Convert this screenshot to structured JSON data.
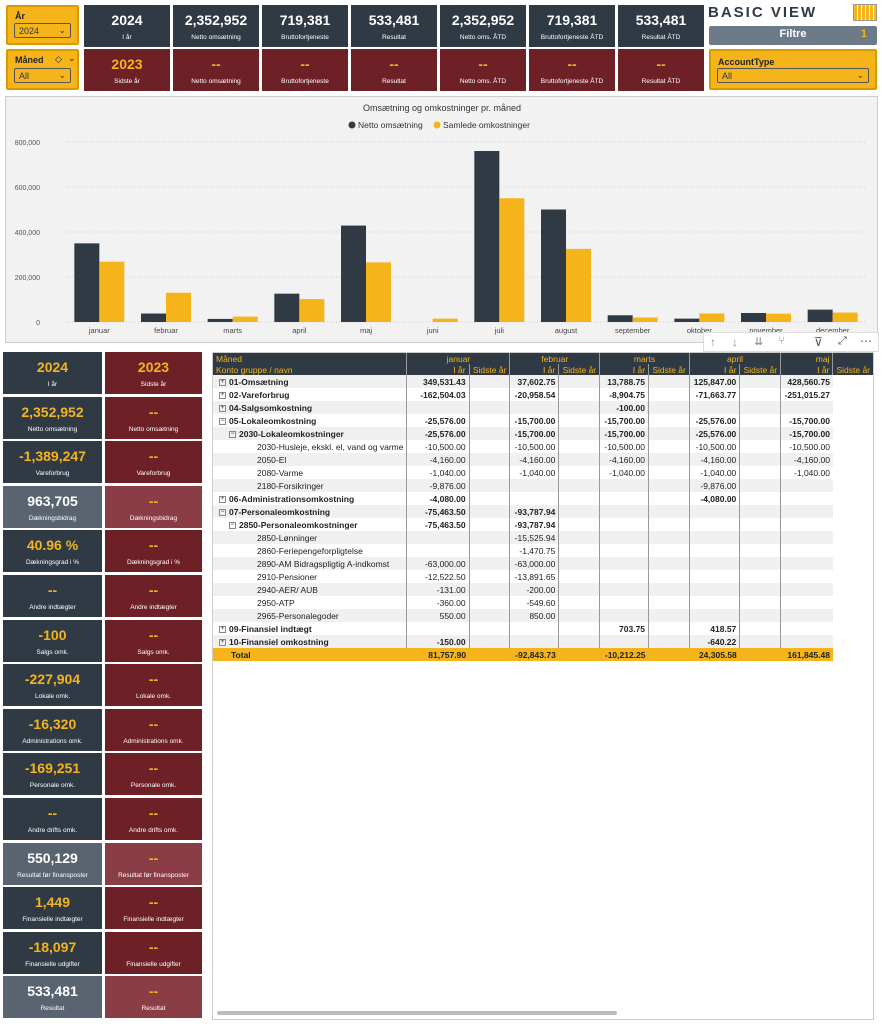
{
  "slicers": {
    "year": {
      "label": "År",
      "value": "2024"
    },
    "month": {
      "label": "Måned",
      "value": "All"
    },
    "account_type": {
      "label": "AccountType",
      "value": "All"
    }
  },
  "brand": {
    "logo": "BASIC VIEW",
    "filter_button": "Filtre",
    "filter_count": "1"
  },
  "kpi_current": [
    {
      "value": "2024",
      "caption": "I år"
    },
    {
      "value": "2,352,952",
      "caption": "Netto omsætning"
    },
    {
      "value": "719,381",
      "caption": "Bruttofortjeneste"
    },
    {
      "value": "533,481",
      "caption": "Resultat"
    },
    {
      "value": "2,352,952",
      "caption": "Netto oms. ÅTD"
    },
    {
      "value": "719,381",
      "caption": "Bruttofortjeneste ÅTD"
    },
    {
      "value": "533,481",
      "caption": "Resultat ÅTD"
    }
  ],
  "kpi_previous": [
    {
      "value": "2023",
      "caption": "Sidste år"
    },
    {
      "value": "--",
      "caption": "Netto omsætning"
    },
    {
      "value": "--",
      "caption": "Bruttofortjeneste"
    },
    {
      "value": "--",
      "caption": "Resultat"
    },
    {
      "value": "--",
      "caption": "Netto oms. ÅTD"
    },
    {
      "value": "--",
      "caption": "Bruttofortjeneste ÅTD"
    },
    {
      "value": "--",
      "caption": "Resultat ÅTD"
    }
  ],
  "chart_data": {
    "type": "bar",
    "title": "Omsætning og omkostninger pr. måned",
    "categories": [
      "januar",
      "februar",
      "marts",
      "april",
      "maj",
      "juni",
      "juli",
      "august",
      "september",
      "oktober",
      "november",
      "december"
    ],
    "series": [
      {
        "name": "Netto omsætning",
        "color": "#2f3a45",
        "values": [
          349531,
          37603,
          13789,
          125847,
          428561,
          0,
          760000,
          500000,
          30000,
          15000,
          40000,
          55000
        ]
      },
      {
        "name": "Samlede omkostninger",
        "color": "#f4b41a",
        "values": [
          268000,
          130000,
          24000,
          102000,
          265000,
          15000,
          550000,
          325000,
          20000,
          38000,
          37000,
          42000
        ]
      }
    ],
    "yticks": [
      "0",
      "200,000",
      "400,000",
      "600,000",
      "800,000"
    ],
    "ylim": [
      0,
      800000
    ],
    "legend": "top-center"
  },
  "left_cards": [
    {
      "cur": "2024",
      "cur_cap": "I år",
      "prev": "2023",
      "prev_cap": "Sidste år"
    },
    {
      "cur": "2,352,952",
      "cur_cap": "Netto omsætning",
      "prev": "--",
      "prev_cap": "Netto omsætning"
    },
    {
      "cur": "-1,389,247",
      "cur_cap": "Vareforbrug",
      "prev": "--",
      "prev_cap": "Vareforbrug"
    },
    {
      "cur": "963,705",
      "cur_cap": "Dækningsbidrag",
      "prev": "--",
      "prev_cap": "Dækningsbidrag"
    },
    {
      "cur": "40.96 %",
      "cur_cap": "Dækningsgrad i %",
      "prev": "--",
      "prev_cap": "Dækningsgrad i %"
    },
    {
      "cur": "--",
      "cur_cap": "Andre indtægter",
      "prev": "--",
      "prev_cap": "Andre indtægter"
    },
    {
      "cur": "-100",
      "cur_cap": "Salgs omk.",
      "prev": "--",
      "prev_cap": "Salgs omk."
    },
    {
      "cur": "-227,904",
      "cur_cap": "Lokale omk.",
      "prev": "--",
      "prev_cap": "Lokale omk."
    },
    {
      "cur": "-16,320",
      "cur_cap": "Administrations omk.",
      "prev": "--",
      "prev_cap": "Administrations omk."
    },
    {
      "cur": "-169,251",
      "cur_cap": "Personale omk.",
      "prev": "--",
      "prev_cap": "Personale omk."
    },
    {
      "cur": "--",
      "cur_cap": "Andre drifts omk.",
      "prev": "--",
      "prev_cap": "Andre drifts omk."
    },
    {
      "cur": "550,129",
      "cur_cap": "Resultat før finansposter",
      "prev": "--",
      "prev_cap": "Resultat før finansposter"
    },
    {
      "cur": "1,449",
      "cur_cap": "Finansielle indtægter",
      "prev": "--",
      "prev_cap": "Finansielle indtægter"
    },
    {
      "cur": "-18,097",
      "cur_cap": "Finansielle udgifter",
      "prev": "--",
      "prev_cap": "Finansielle udgifter"
    },
    {
      "cur": "533,481",
      "cur_cap": "Resultat",
      "prev": "--",
      "prev_cap": "Resultat"
    }
  ],
  "table": {
    "row_header_1": "Måned",
    "row_header_2": "Konto gruppe / navn",
    "months": [
      "januar",
      "februar",
      "marts",
      "april",
      "maj"
    ],
    "sub_cur": "I år",
    "sub_prev": "Sidste år",
    "rows": [
      {
        "name": "01-Omsætning",
        "level": 0,
        "bold": true,
        "exp": "+",
        "vals": [
          "349,531.43",
          "",
          "37,602.75",
          "",
          "13,788.75",
          "",
          "125,847.00",
          "",
          "428,560.75"
        ]
      },
      {
        "name": "02-Vareforbrug",
        "level": 0,
        "bold": true,
        "exp": "+",
        "vals": [
          "-162,504.03",
          "",
          "-20,958.54",
          "",
          "-8,904.75",
          "",
          "-71,663.77",
          "",
          "-251,015.27"
        ]
      },
      {
        "name": "04-Salgsomkostning",
        "level": 0,
        "bold": true,
        "exp": "+",
        "vals": [
          "",
          "",
          "",
          "",
          "-100.00",
          "",
          "",
          "",
          ""
        ]
      },
      {
        "name": "05-Lokaleomkostning",
        "level": 0,
        "bold": true,
        "exp": "-",
        "vals": [
          "-25,576.00",
          "",
          "-15,700.00",
          "",
          "-15,700.00",
          "",
          "-25,576.00",
          "",
          "-15,700.00"
        ]
      },
      {
        "name": "2030-Lokaleomkostninger",
        "level": 1,
        "bold": true,
        "exp": "-",
        "vals": [
          "-25,576.00",
          "",
          "-15,700.00",
          "",
          "-15,700.00",
          "",
          "-25,576.00",
          "",
          "-15,700.00"
        ]
      },
      {
        "name": "2030-Husleje, ekskl. el, vand og varme",
        "level": 2,
        "bold": false,
        "exp": "",
        "vals": [
          "-10,500.00",
          "",
          "-10,500.00",
          "",
          "-10,500.00",
          "",
          "-10,500.00",
          "",
          "-10,500.00"
        ]
      },
      {
        "name": "2050-El",
        "level": 2,
        "bold": false,
        "exp": "",
        "vals": [
          "-4,160.00",
          "",
          "-4,160.00",
          "",
          "-4,160.00",
          "",
          "-4,160.00",
          "",
          "-4,160.00"
        ]
      },
      {
        "name": "2080-Varme",
        "level": 2,
        "bold": false,
        "exp": "",
        "vals": [
          "-1,040.00",
          "",
          "-1,040.00",
          "",
          "-1,040.00",
          "",
          "-1,040.00",
          "",
          "-1,040.00"
        ]
      },
      {
        "name": "2180-Forsikringer",
        "level": 2,
        "bold": false,
        "exp": "",
        "vals": [
          "-9,876.00",
          "",
          "",
          "",
          "",
          "",
          "-9,876.00",
          "",
          ""
        ]
      },
      {
        "name": "06-Administrationsomkostning",
        "level": 0,
        "bold": true,
        "exp": "+",
        "vals": [
          "-4,080.00",
          "",
          "",
          "",
          "",
          "",
          "-4,080.00",
          "",
          ""
        ]
      },
      {
        "name": "07-Personaleomkostning",
        "level": 0,
        "bold": true,
        "exp": "-",
        "vals": [
          "-75,463.50",
          "",
          "-93,787.94",
          "",
          "",
          "",
          "",
          "",
          ""
        ]
      },
      {
        "name": "2850-Personaleomkostninger",
        "level": 1,
        "bold": true,
        "exp": "-",
        "vals": [
          "-75,463.50",
          "",
          "-93,787.94",
          "",
          "",
          "",
          "",
          "",
          ""
        ]
      },
      {
        "name": "2850-Lønninger",
        "level": 2,
        "bold": false,
        "exp": "",
        "vals": [
          "",
          "",
          "-15,525.94",
          "",
          "",
          "",
          "",
          "",
          ""
        ]
      },
      {
        "name": "2860-Feriepengeforpligtelse",
        "level": 2,
        "bold": false,
        "exp": "",
        "vals": [
          "",
          "",
          "-1,470.75",
          "",
          "",
          "",
          "",
          "",
          ""
        ]
      },
      {
        "name": "2890-AM Bidragspligtig A-indkomst",
        "level": 2,
        "bold": false,
        "exp": "",
        "vals": [
          "-63,000.00",
          "",
          "-63,000.00",
          "",
          "",
          "",
          "",
          "",
          ""
        ]
      },
      {
        "name": "2910-Pensioner",
        "level": 2,
        "bold": false,
        "exp": "",
        "vals": [
          "-12,522.50",
          "",
          "-13,891.65",
          "",
          "",
          "",
          "",
          "",
          ""
        ]
      },
      {
        "name": "2940-AER/ AUB",
        "level": 2,
        "bold": false,
        "exp": "",
        "vals": [
          "-131.00",
          "",
          "-200.00",
          "",
          "",
          "",
          "",
          "",
          ""
        ]
      },
      {
        "name": "2950-ATP",
        "level": 2,
        "bold": false,
        "exp": "",
        "vals": [
          "-360.00",
          "",
          "-549.60",
          "",
          "",
          "",
          "",
          "",
          ""
        ]
      },
      {
        "name": "2965-Personalegoder",
        "level": 2,
        "bold": false,
        "exp": "",
        "vals": [
          "550.00",
          "",
          "850.00",
          "",
          "",
          "",
          "",
          "",
          ""
        ]
      },
      {
        "name": "09-Finansiel indtægt",
        "level": 0,
        "bold": true,
        "exp": "+",
        "vals": [
          "",
          "",
          "",
          "",
          "703.75",
          "",
          "418.57",
          "",
          ""
        ]
      },
      {
        "name": "10-Finansiel omkostning",
        "level": 0,
        "bold": true,
        "exp": "+",
        "vals": [
          "-150.00",
          "",
          "",
          "",
          "",
          "",
          "-640.22",
          "",
          ""
        ]
      }
    ],
    "total": {
      "name": "Total",
      "vals": [
        "81,757.90",
        "",
        "-92,843.73",
        "",
        "-10,212.25",
        "",
        "24,305.58",
        "",
        "161,845.48"
      ]
    }
  }
}
